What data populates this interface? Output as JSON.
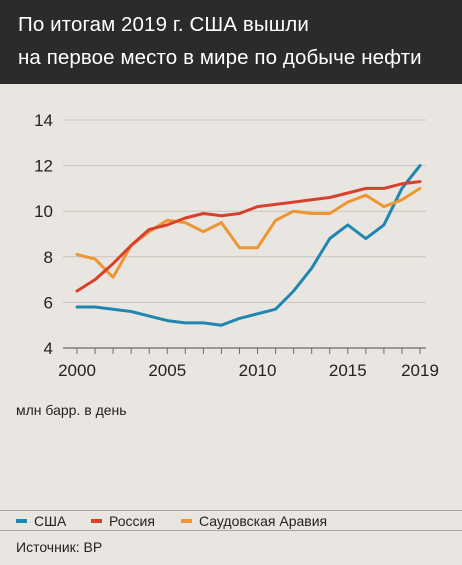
{
  "header": {
    "title_line1": "По итогам 2019 г. США вышли",
    "title_line2": "на первое место в мире по добыче нефти"
  },
  "unit_label": "млн барр. в день",
  "source": "Источник: BP",
  "colors": {
    "header_bg": "#2b2b2b",
    "background": "#e9e6e1",
    "usa": "#1f86b0",
    "russia": "#d9402b",
    "saudi": "#ef9630"
  },
  "chart_data": {
    "type": "line",
    "x": [
      2000,
      2001,
      2002,
      2003,
      2004,
      2005,
      2006,
      2007,
      2008,
      2009,
      2010,
      2011,
      2012,
      2013,
      2014,
      2015,
      2016,
      2017,
      2018,
      2019
    ],
    "series": [
      {
        "name": "США",
        "color": "#1f86b0",
        "values": [
          5.8,
          5.8,
          5.7,
          5.6,
          5.4,
          5.2,
          5.1,
          5.1,
          5.0,
          5.3,
          5.5,
          5.7,
          6.5,
          7.5,
          8.8,
          9.4,
          8.8,
          9.4,
          11.0,
          12.0
        ]
      },
      {
        "name": "Россия",
        "color": "#d9402b",
        "values": [
          6.5,
          7.0,
          7.7,
          8.5,
          9.2,
          9.4,
          9.7,
          9.9,
          9.8,
          9.9,
          10.2,
          10.3,
          10.4,
          10.5,
          10.6,
          10.8,
          11.0,
          11.0,
          11.2,
          11.3
        ]
      },
      {
        "name": "Саудовская Аравия",
        "color": "#ef9630",
        "values": [
          8.1,
          7.9,
          7.1,
          8.5,
          9.1,
          9.6,
          9.5,
          9.1,
          9.5,
          8.4,
          8.4,
          9.6,
          10.0,
          9.9,
          9.9,
          10.4,
          10.7,
          10.2,
          10.5,
          11.0
        ]
      }
    ],
    "xticks": [
      "2000",
      "2005",
      "2010",
      "2015",
      "2019"
    ],
    "yticks": [
      "4",
      "6",
      "8",
      "10",
      "12",
      "14"
    ],
    "xlim": [
      2000,
      2019
    ],
    "ylim": [
      4,
      14
    ],
    "grid": "horizontal",
    "legend_position": "bottom"
  }
}
